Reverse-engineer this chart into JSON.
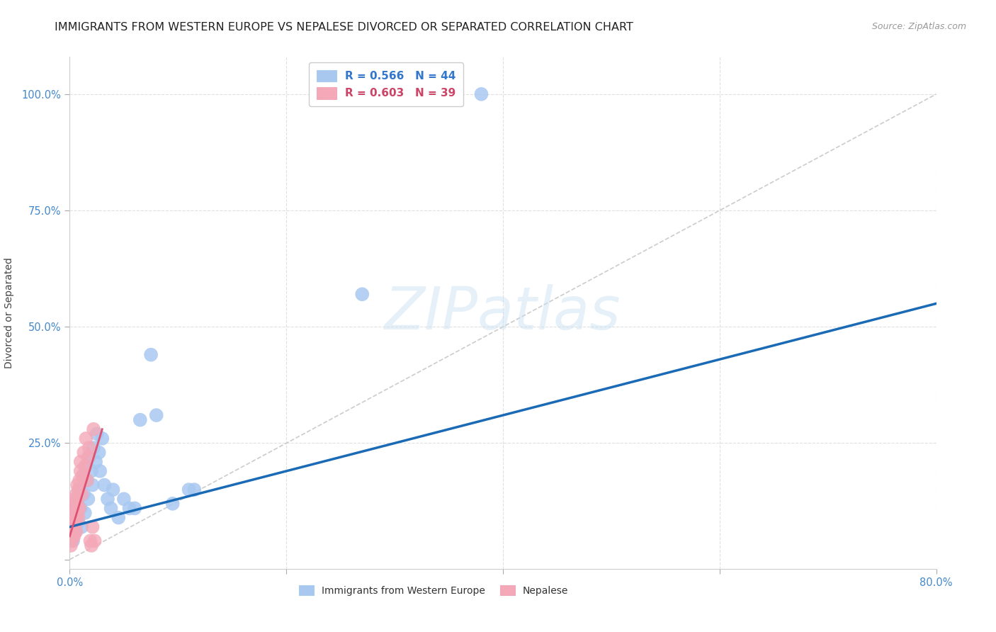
{
  "title": "IMMIGRANTS FROM WESTERN EUROPE VS NEPALESE DIVORCED OR SEPARATED CORRELATION CHART",
  "source": "Source: ZipAtlas.com",
  "ylabel": "Divorced or Separated",
  "watermark": "ZIPatlas",
  "xlim": [
    0.0,
    0.8
  ],
  "ylim": [
    -0.02,
    1.08
  ],
  "xticks": [
    0.0,
    0.2,
    0.4,
    0.6,
    0.8
  ],
  "xtick_labels": [
    "0.0%",
    "",
    "",
    "",
    "80.0%"
  ],
  "yticks": [
    0.0,
    0.25,
    0.5,
    0.75,
    1.0
  ],
  "ytick_labels": [
    "",
    "25.0%",
    "50.0%",
    "75.0%",
    "100.0%"
  ],
  "blue_R": "0.566",
  "blue_N": "44",
  "pink_R": "0.603",
  "pink_N": "39",
  "blue_color": "#a8c8f0",
  "pink_color": "#f4a8b8",
  "blue_line_color": "#1a6ab5",
  "pink_line_color": "#e05070",
  "blue_scatter": [
    [
      0.001,
      0.05
    ],
    [
      0.002,
      0.08
    ],
    [
      0.003,
      0.04
    ],
    [
      0.003,
      0.12
    ],
    [
      0.004,
      0.07
    ],
    [
      0.005,
      0.06
    ],
    [
      0.005,
      0.1
    ],
    [
      0.006,
      0.09
    ],
    [
      0.007,
      0.13
    ],
    [
      0.008,
      0.08
    ],
    [
      0.009,
      0.15
    ],
    [
      0.01,
      0.11
    ],
    [
      0.011,
      0.07
    ],
    [
      0.012,
      0.18
    ],
    [
      0.013,
      0.14
    ],
    [
      0.014,
      0.1
    ],
    [
      0.015,
      0.2
    ],
    [
      0.016,
      0.17
    ],
    [
      0.017,
      0.13
    ],
    [
      0.018,
      0.22
    ],
    [
      0.02,
      0.19
    ],
    [
      0.021,
      0.16
    ],
    [
      0.022,
      0.24
    ],
    [
      0.024,
      0.21
    ],
    [
      0.025,
      0.27
    ],
    [
      0.027,
      0.23
    ],
    [
      0.028,
      0.19
    ],
    [
      0.03,
      0.26
    ],
    [
      0.032,
      0.16
    ],
    [
      0.035,
      0.13
    ],
    [
      0.038,
      0.11
    ],
    [
      0.04,
      0.15
    ],
    [
      0.045,
      0.09
    ],
    [
      0.05,
      0.13
    ],
    [
      0.055,
      0.11
    ],
    [
      0.06,
      0.11
    ],
    [
      0.065,
      0.3
    ],
    [
      0.075,
      0.44
    ],
    [
      0.08,
      0.31
    ],
    [
      0.095,
      0.12
    ],
    [
      0.11,
      0.15
    ],
    [
      0.115,
      0.15
    ],
    [
      0.27,
      0.57
    ],
    [
      0.38,
      1.0
    ]
  ],
  "pink_scatter": [
    [
      0.001,
      0.03
    ],
    [
      0.001,
      0.05
    ],
    [
      0.002,
      0.07
    ],
    [
      0.002,
      0.04
    ],
    [
      0.002,
      0.09
    ],
    [
      0.003,
      0.06
    ],
    [
      0.003,
      0.08
    ],
    [
      0.003,
      0.1
    ],
    [
      0.004,
      0.07
    ],
    [
      0.004,
      0.11
    ],
    [
      0.004,
      0.05
    ],
    [
      0.005,
      0.09
    ],
    [
      0.005,
      0.13
    ],
    [
      0.005,
      0.12
    ],
    [
      0.006,
      0.08
    ],
    [
      0.006,
      0.14
    ],
    [
      0.006,
      0.06
    ],
    [
      0.007,
      0.16
    ],
    [
      0.007,
      0.1
    ],
    [
      0.007,
      0.12
    ],
    [
      0.008,
      0.15
    ],
    [
      0.008,
      0.09
    ],
    [
      0.009,
      0.17
    ],
    [
      0.009,
      0.11
    ],
    [
      0.01,
      0.19
    ],
    [
      0.01,
      0.21
    ],
    [
      0.011,
      0.14
    ],
    [
      0.012,
      0.18
    ],
    [
      0.013,
      0.23
    ],
    [
      0.014,
      0.2
    ],
    [
      0.015,
      0.26
    ],
    [
      0.016,
      0.17
    ],
    [
      0.017,
      0.22
    ],
    [
      0.018,
      0.24
    ],
    [
      0.019,
      0.04
    ],
    [
      0.02,
      0.03
    ],
    [
      0.021,
      0.07
    ],
    [
      0.022,
      0.28
    ],
    [
      0.023,
      0.04
    ]
  ],
  "blue_trendline": [
    [
      0.0,
      0.07
    ],
    [
      0.8,
      0.55
    ]
  ],
  "pink_trendline": [
    [
      0.0,
      0.05
    ],
    [
      0.03,
      0.28
    ]
  ],
  "diag_line": [
    [
      0.0,
      0.0
    ],
    [
      0.8,
      1.0
    ]
  ],
  "grid_color": "#e0e0e0",
  "background_color": "#ffffff",
  "title_fontsize": 11.5,
  "axis_label_fontsize": 10,
  "tick_fontsize": 10.5,
  "legend_fontsize": 11
}
